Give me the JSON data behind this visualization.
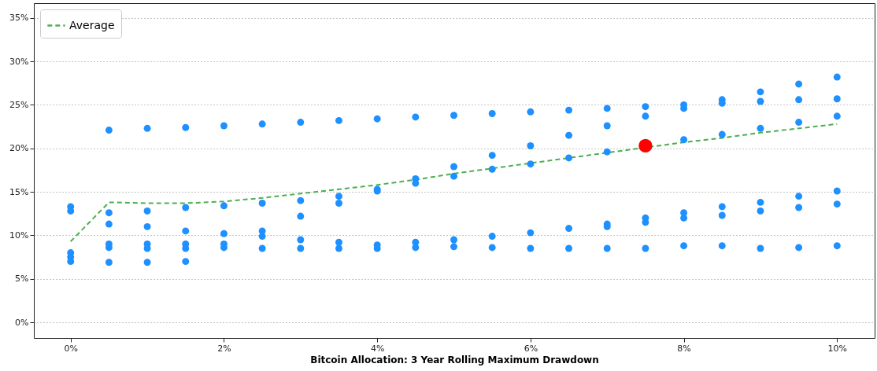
{
  "chart_data": {
    "type": "scatter",
    "xlabel": "Bitcoin Allocation: 3 Year Rolling Maximum Drawdown",
    "xlim": [
      -0.48,
      10.49
    ],
    "ylim": [
      -1.8,
      36.7
    ],
    "xticks": [
      {
        "value": 0,
        "label": "0%"
      },
      {
        "value": 2,
        "label": "2%"
      },
      {
        "value": 4,
        "label": "4%"
      },
      {
        "value": 6,
        "label": "6%"
      },
      {
        "value": 8,
        "label": "8%"
      },
      {
        "value": 10,
        "label": "10%"
      }
    ],
    "yticks": [
      {
        "value": 0,
        "label": "0%"
      },
      {
        "value": 5,
        "label": "5%"
      },
      {
        "value": 10,
        "label": "10%"
      },
      {
        "value": 15,
        "label": "15%"
      },
      {
        "value": 20,
        "label": "20%"
      },
      {
        "value": 25,
        "label": "25%"
      },
      {
        "value": 30,
        "label": "30%"
      },
      {
        "value": 35,
        "label": "35%"
      }
    ],
    "grid": "y",
    "legend": "top left",
    "marker": "circle",
    "series": [
      {
        "color": "#1e90ff",
        "x": [
          0,
          0,
          0,
          0,
          0,
          0.5,
          0.5,
          0.5,
          0.5,
          0.5,
          0.5,
          1,
          1,
          1,
          1,
          1,
          1,
          1.5,
          1.5,
          1.5,
          1.5,
          1.5,
          1.5,
          2,
          2,
          2,
          2,
          2,
          2.5,
          2.5,
          2.5,
          2.5,
          2.5,
          3,
          3,
          3,
          3,
          3,
          3.5,
          3.5,
          3.5,
          3.5,
          3.5,
          4,
          4,
          4,
          4,
          4,
          4.5,
          4.5,
          4.5,
          4.5,
          4.5,
          5,
          5,
          5,
          5,
          5,
          5.5,
          5.5,
          5.5,
          5.5,
          5.5,
          6,
          6,
          6,
          6,
          6,
          6.5,
          6.5,
          6.5,
          6.5,
          6.5,
          7,
          7,
          7,
          7,
          7,
          7,
          7.5,
          7.5,
          7.5,
          7.5,
          7.5,
          8,
          8,
          8,
          8,
          8,
          8,
          8.5,
          8.5,
          8.5,
          8.5,
          8.5,
          8.5,
          9,
          9,
          9,
          9,
          9,
          9,
          9.5,
          9.5,
          9.5,
          9.5,
          9.5,
          9.5,
          10,
          10,
          10,
          10,
          10,
          10
        ],
        "values": [
          13.3,
          12.8,
          8.0,
          7.5,
          7.0,
          22.1,
          12.6,
          11.3,
          9.0,
          8.6,
          6.9,
          22.3,
          12.8,
          11.0,
          9.0,
          8.5,
          6.9,
          22.4,
          13.2,
          10.5,
          9.0,
          8.5,
          7.0,
          22.6,
          13.4,
          10.2,
          9.0,
          8.6,
          22.8,
          13.7,
          10.5,
          9.9,
          8.5,
          23.0,
          14.0,
          12.2,
          9.5,
          8.5,
          23.2,
          14.5,
          13.7,
          9.2,
          8.5,
          23.4,
          15.3,
          15.1,
          8.9,
          8.5,
          23.6,
          16.5,
          16.0,
          9.2,
          8.6,
          23.8,
          17.9,
          16.8,
          9.5,
          8.7,
          24.0,
          19.2,
          17.6,
          9.9,
          8.6,
          24.2,
          20.3,
          18.2,
          10.3,
          8.5,
          24.4,
          21.5,
          18.9,
          10.8,
          8.5,
          24.6,
          22.6,
          19.6,
          11.3,
          11.0,
          8.5,
          24.8,
          23.7,
          12.0,
          11.5,
          8.5,
          25.0,
          24.6,
          21.0,
          12.6,
          12.0,
          8.8,
          25.6,
          25.2,
          21.6,
          13.3,
          12.3,
          8.8,
          26.5,
          25.4,
          22.3,
          13.8,
          12.8,
          8.5,
          27.4,
          25.6,
          23.0,
          14.5,
          13.2,
          8.6,
          28.2,
          25.7,
          23.7,
          15.1,
          13.6,
          8.8
        ]
      },
      {
        "type": "line",
        "name": "Average",
        "color": "#4caf50",
        "line_style": "dashed",
        "marker": "none",
        "x": [
          0,
          0.5,
          1,
          1.5,
          2,
          2.5,
          3,
          3.5,
          4,
          4.5,
          5,
          5.5,
          6,
          6.5,
          7,
          7.5,
          8,
          8.5,
          9,
          9.5,
          10
        ],
        "values": [
          9.3,
          13.8,
          13.7,
          13.7,
          13.9,
          14.3,
          14.8,
          15.3,
          15.8,
          16.4,
          17.1,
          17.7,
          18.3,
          18.9,
          19.5,
          20.1,
          20.7,
          21.2,
          21.8,
          22.3,
          22.8
        ]
      },
      {
        "color": "#ff0000",
        "x": [
          7.5
        ],
        "values": [
          20.3
        ]
      }
    ]
  }
}
